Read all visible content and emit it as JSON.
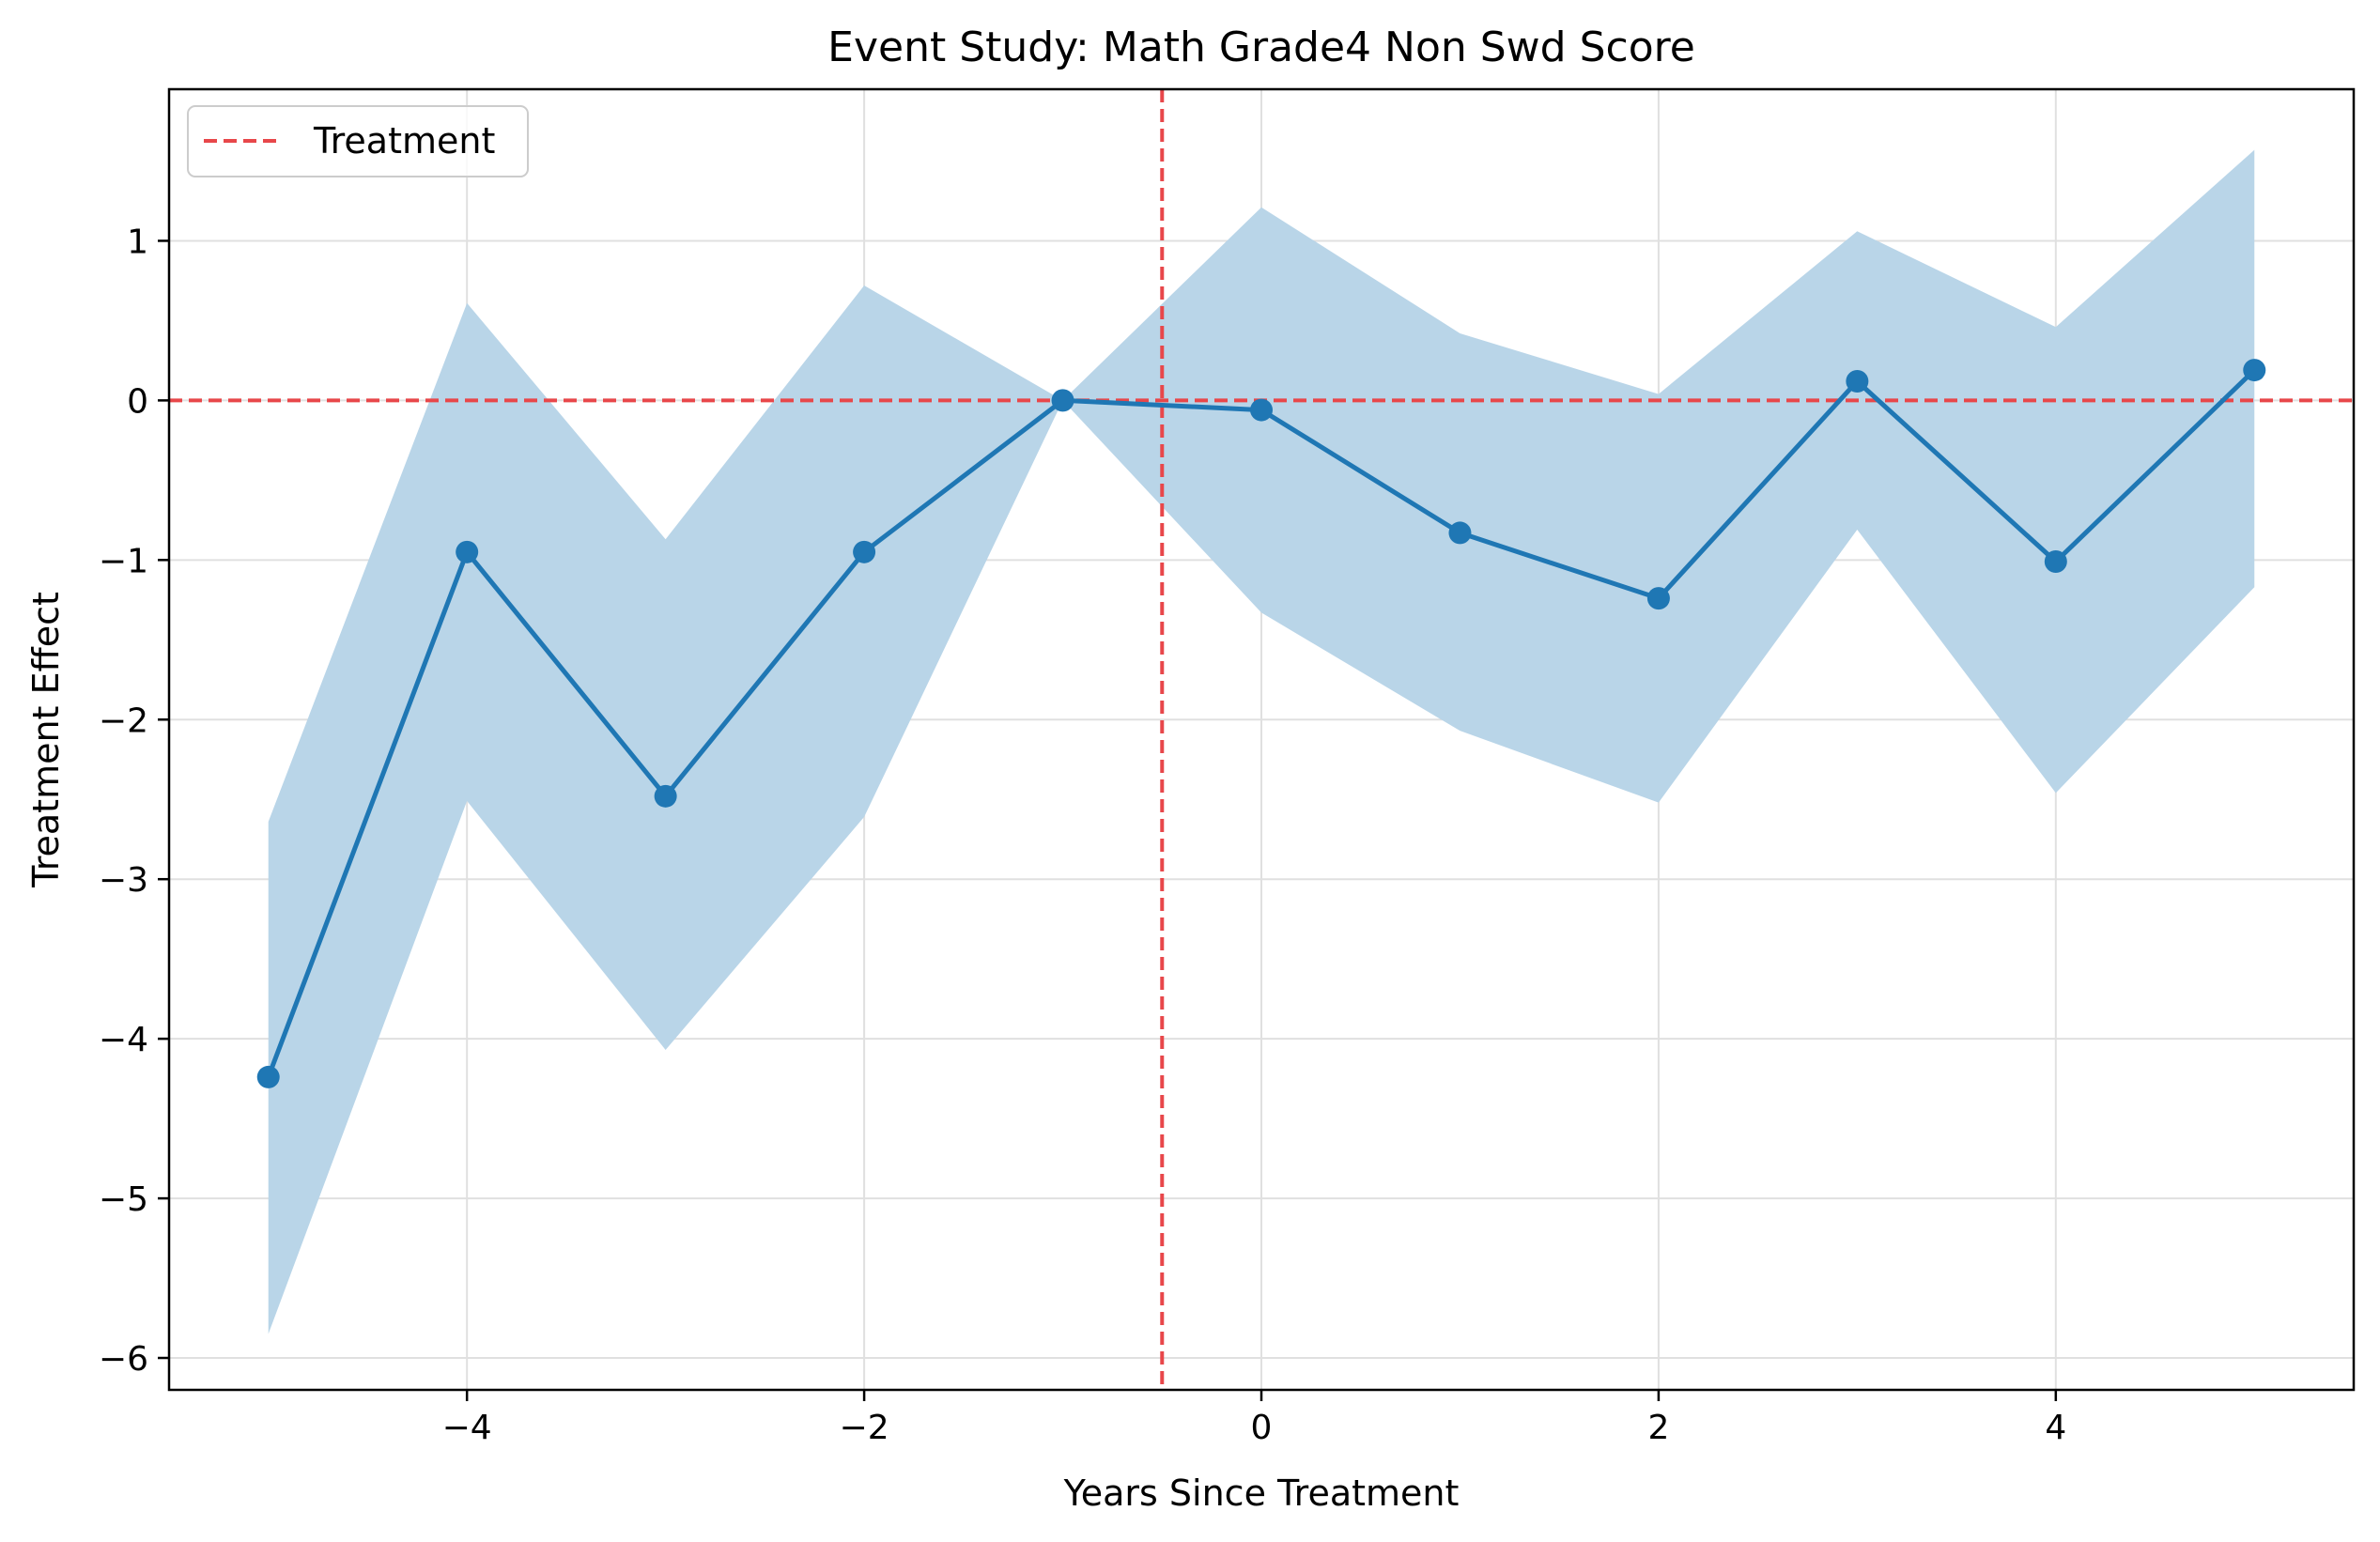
{
  "chart_data": {
    "type": "line",
    "title": "Event Study: Math Grade4 Non Swd Score",
    "xlabel": "Years Since Treatment",
    "ylabel": "Treatment Effect",
    "xlim": [
      -5.5,
      5.5
    ],
    "ylim": [
      -6.2,
      1.95
    ],
    "x_ticks": [
      -4,
      -2,
      0,
      2,
      4
    ],
    "y_ticks": [
      -6,
      -5,
      -4,
      -3,
      -2,
      -1,
      0,
      1
    ],
    "grid": true,
    "legend_position": "upper-left",
    "legend": [
      {
        "label": "Treatment",
        "style": "dashed",
        "color": "#e8474a"
      }
    ],
    "reference_lines": {
      "horizontal_y": 0,
      "vertical_x": -0.5,
      "color": "#e8474a",
      "style": "dashed"
    },
    "series": [
      {
        "color": "#1f77b4",
        "x": [
          -5,
          -4,
          -3,
          -2,
          -1,
          0,
          1,
          2,
          3,
          4,
          5
        ],
        "y": [
          -4.24,
          -0.95,
          -2.48,
          -0.95,
          0.0,
          -0.06,
          -0.83,
          -1.24,
          0.12,
          -1.01,
          0.19
        ]
      }
    ],
    "confidence_band": {
      "color": "#b9d5e8",
      "x": [
        -5,
        -4,
        -3,
        -2,
        -1,
        0,
        1,
        2,
        3,
        4,
        5
      ],
      "lower": [
        -5.85,
        -2.51,
        -4.07,
        -2.61,
        0.0,
        -1.33,
        -2.07,
        -2.52,
        -0.81,
        -2.46,
        -1.17
      ],
      "upper": [
        -2.64,
        0.61,
        -0.87,
        0.72,
        0.0,
        1.21,
        0.42,
        0.04,
        1.06,
        0.46,
        1.57
      ]
    }
  }
}
